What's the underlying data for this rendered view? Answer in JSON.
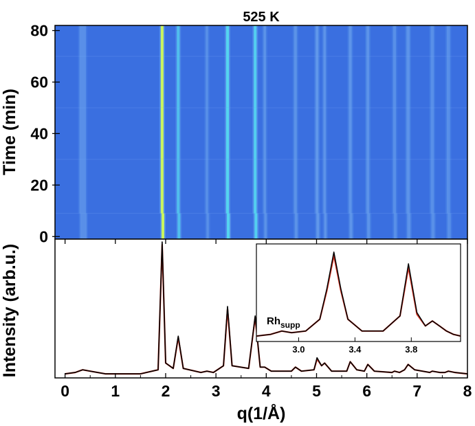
{
  "chart_data": [
    {
      "type": "heatmap",
      "title": "525 K",
      "ylabel": "Time (min)",
      "yticks": [
        "0",
        "20",
        "40",
        "60",
        "80"
      ],
      "ylim": [
        -1,
        82
      ],
      "xlim": [
        -0.2,
        8
      ],
      "segments_min": [
        [
          -1,
          9
        ],
        [
          9,
          30
        ],
        [
          30,
          50
        ],
        [
          50,
          70
        ],
        [
          70,
          82
        ]
      ],
      "peaks": [
        {
          "q": 0.35,
          "intensity": 0.05,
          "width": 0.08
        },
        {
          "q": 1.93,
          "intensity": 1.0,
          "width": 0.035
        },
        {
          "q": 2.25,
          "intensity": 0.3,
          "width": 0.035
        },
        {
          "q": 2.82,
          "intensity": 0.04,
          "width": 0.03
        },
        {
          "q": 3.23,
          "intensity": 0.52,
          "width": 0.035
        },
        {
          "q": 3.78,
          "intensity": 0.45,
          "width": 0.035
        },
        {
          "q": 3.97,
          "intensity": 0.07,
          "width": 0.03
        },
        {
          "q": 4.58,
          "intensity": 0.07,
          "width": 0.035
        },
        {
          "q": 5.01,
          "intensity": 0.14,
          "width": 0.035
        },
        {
          "q": 5.16,
          "intensity": 0.1,
          "width": 0.03
        },
        {
          "q": 5.67,
          "intensity": 0.11,
          "width": 0.035
        },
        {
          "q": 6.02,
          "intensity": 0.09,
          "width": 0.035
        },
        {
          "q": 6.55,
          "intensity": 0.04,
          "width": 0.035
        },
        {
          "q": 6.82,
          "intensity": 0.09,
          "width": 0.04
        },
        {
          "q": 7.3,
          "intensity": 0.04,
          "width": 0.04
        },
        {
          "q": 7.62,
          "intensity": 0.04,
          "width": 0.04
        }
      ],
      "colors": {
        "low": "#3a6fe0",
        "mid": "#55d6f0",
        "high": "#c9f560"
      }
    },
    {
      "type": "line",
      "xlabel": "q(1/Å)",
      "ylabel": "Intensity (arb.u.)",
      "xticks": [
        "0",
        "1",
        "2",
        "3",
        "4",
        "5",
        "6",
        "7",
        "8"
      ],
      "xlim": [
        -0.2,
        8
      ],
      "series": [
        {
          "color": "#000000",
          "x": [
            0.0,
            0.2,
            0.35,
            0.5,
            0.8,
            1.5,
            1.85,
            1.93,
            2.0,
            2.15,
            2.25,
            2.35,
            2.7,
            2.82,
            2.95,
            3.15,
            3.23,
            3.32,
            3.65,
            3.78,
            3.88,
            3.97,
            4.1,
            4.5,
            4.58,
            4.7,
            4.95,
            5.01,
            5.1,
            5.16,
            5.3,
            5.6,
            5.67,
            5.8,
            5.95,
            6.02,
            6.15,
            6.5,
            6.55,
            6.65,
            6.75,
            6.82,
            6.95,
            7.25,
            7.3,
            7.45,
            7.55,
            7.62,
            7.75,
            8.0
          ],
          "y": [
            0.02,
            0.03,
            0.05,
            0.04,
            0.02,
            0.02,
            0.05,
            1.0,
            0.1,
            0.06,
            0.3,
            0.06,
            0.03,
            0.04,
            0.03,
            0.08,
            0.52,
            0.08,
            0.06,
            0.45,
            0.07,
            0.07,
            0.04,
            0.04,
            0.07,
            0.04,
            0.05,
            0.14,
            0.08,
            0.1,
            0.04,
            0.04,
            0.11,
            0.05,
            0.04,
            0.09,
            0.04,
            0.03,
            0.04,
            0.03,
            0.05,
            0.09,
            0.05,
            0.03,
            0.04,
            0.03,
            0.03,
            0.04,
            0.03,
            0.02
          ]
        },
        {
          "color": "#d03020",
          "x": [
            0.0,
            0.2,
            0.35,
            0.5,
            0.8,
            1.5,
            1.85,
            1.93,
            2.0,
            2.15,
            2.25,
            2.35,
            2.7,
            2.82,
            2.95,
            3.15,
            3.23,
            3.32,
            3.65,
            3.78,
            3.88,
            3.97,
            4.1,
            4.5,
            4.58,
            4.7,
            4.95,
            5.01,
            5.1,
            5.16,
            5.3,
            5.6,
            5.67,
            5.8,
            5.95,
            6.02,
            6.15,
            6.5,
            6.55,
            6.65,
            6.75,
            6.82,
            6.95,
            7.25,
            7.3,
            7.45,
            7.55,
            7.62,
            7.75,
            8.0
          ],
          "y": [
            0.02,
            0.03,
            0.05,
            0.04,
            0.02,
            0.02,
            0.05,
            0.98,
            0.1,
            0.06,
            0.29,
            0.06,
            0.03,
            0.04,
            0.03,
            0.08,
            0.5,
            0.08,
            0.06,
            0.44,
            0.07,
            0.07,
            0.04,
            0.04,
            0.07,
            0.04,
            0.05,
            0.13,
            0.08,
            0.1,
            0.04,
            0.04,
            0.11,
            0.05,
            0.04,
            0.09,
            0.04,
            0.03,
            0.04,
            0.03,
            0.05,
            0.09,
            0.05,
            0.03,
            0.04,
            0.03,
            0.03,
            0.04,
            0.03,
            0.02
          ]
        }
      ]
    },
    {
      "type": "line",
      "annotation": "Rh",
      "annotation_sub": "supp",
      "xticks": [
        "3.0",
        "3.4",
        "3.8"
      ],
      "xlim": [
        2.7,
        4.15
      ],
      "ylim": [
        0.0,
        0.56
      ],
      "series": [
        {
          "color": "#000000",
          "x": [
            2.7,
            2.8,
            2.88,
            2.95,
            3.05,
            3.15,
            3.2,
            3.25,
            3.3,
            3.35,
            3.45,
            3.6,
            3.72,
            3.78,
            3.84,
            3.9,
            3.95,
            4.0,
            4.05,
            4.1,
            4.15
          ],
          "y": [
            0.02,
            0.03,
            0.05,
            0.04,
            0.05,
            0.12,
            0.3,
            0.52,
            0.3,
            0.12,
            0.05,
            0.05,
            0.14,
            0.45,
            0.16,
            0.08,
            0.11,
            0.08,
            0.05,
            0.03,
            0.02
          ]
        },
        {
          "color": "#d03020",
          "x": [
            2.7,
            2.8,
            2.88,
            2.95,
            3.05,
            3.15,
            3.2,
            3.25,
            3.3,
            3.35,
            3.45,
            3.6,
            3.72,
            3.78,
            3.84,
            3.9,
            3.95,
            4.0,
            4.05,
            4.1,
            4.15
          ],
          "y": [
            0.02,
            0.03,
            0.05,
            0.04,
            0.05,
            0.12,
            0.29,
            0.5,
            0.29,
            0.12,
            0.05,
            0.05,
            0.14,
            0.43,
            0.15,
            0.08,
            0.11,
            0.08,
            0.05,
            0.03,
            0.02
          ]
        }
      ]
    }
  ]
}
